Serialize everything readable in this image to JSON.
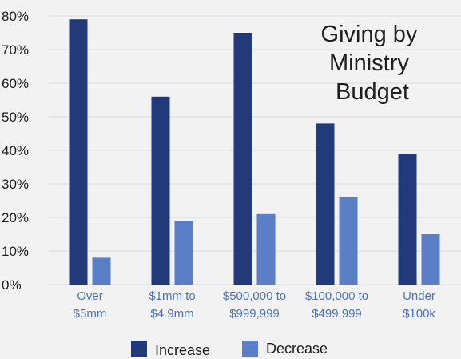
{
  "chart_data": {
    "type": "bar",
    "title_lines": [
      "Giving by",
      "Ministry",
      "Budget"
    ],
    "categories": [
      [
        "Over",
        "$5mm"
      ],
      [
        "$1mm to",
        "$4.9mm"
      ],
      [
        "$500,000 to",
        "$999,999"
      ],
      [
        "$100,000 to",
        "$499,999"
      ],
      [
        "Under",
        "$100k"
      ]
    ],
    "series": [
      {
        "name": "Increase",
        "color": "#233a7a",
        "values": [
          79,
          56,
          75,
          48,
          39
        ]
      },
      {
        "name": "Decrease",
        "color": "#5a7fc7",
        "values": [
          8,
          19,
          21,
          26,
          15
        ]
      }
    ],
    "ylim": [
      0,
      80
    ],
    "yticks": [
      "0%",
      "10%",
      "20%",
      "30%",
      "40%",
      "50%",
      "60%",
      "70%",
      "80%"
    ],
    "grid": true,
    "legend_position": "bottom"
  }
}
